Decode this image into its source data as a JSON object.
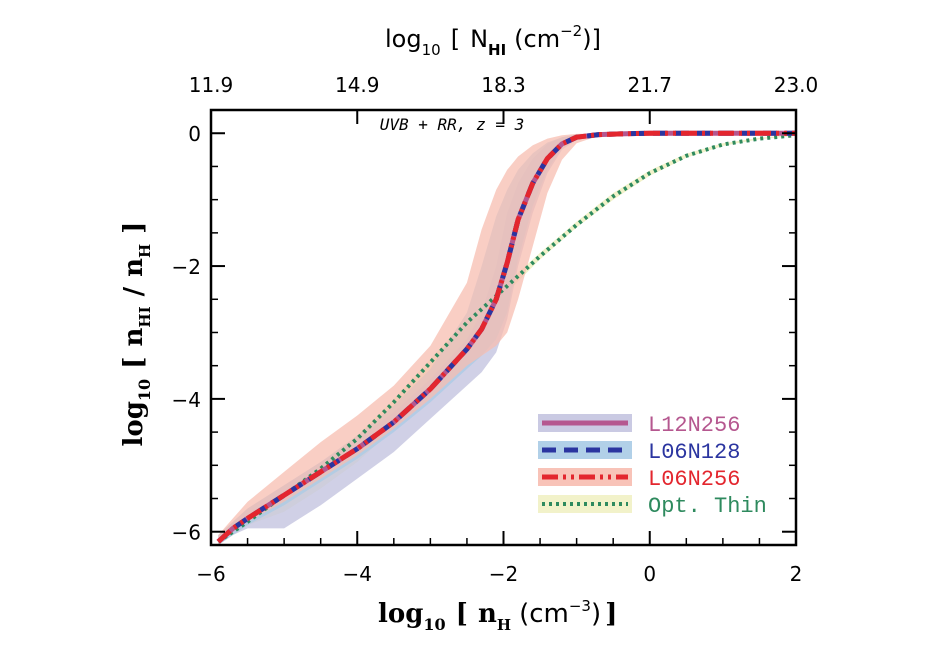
{
  "chart_data": {
    "type": "line",
    "title": "",
    "annotation": "UVB + RR, z = 3",
    "xlabel": {
      "prefix": "log",
      "sub": "10",
      "bracket_open": "[",
      "var": "n",
      "var_sub": "H",
      "unit": "(cm",
      "unit_sup": "−3",
      "unit_close": ")",
      "bracket_close": "]"
    },
    "ylabel": {
      "prefix": "log",
      "sub": "10",
      "bracket_open": "[",
      "num": "n",
      "num_sub": "HI",
      "slash": "/",
      "den": "n",
      "den_sub": "H",
      "bracket_close": "]"
    },
    "top_label": {
      "prefix": "log",
      "sub": "10",
      "bracket_open": "[",
      "var": "N",
      "var_sub": "HI",
      "unit": "(cm",
      "unit_sup": "−2",
      "unit_close": ")",
      "bracket_close": "]"
    },
    "xlim": [
      -6,
      2
    ],
    "ylim": [
      -6.2,
      0.35
    ],
    "x_ticks": [
      -6,
      -4,
      -2,
      0,
      2
    ],
    "x_tick_labels": [
      "−6",
      "−4",
      "−2",
      "0",
      "2"
    ],
    "y_ticks": [
      -6,
      -4,
      -2,
      0
    ],
    "y_tick_labels": [
      "−6",
      "−4",
      "−2",
      "0"
    ],
    "top_ticks": [
      -6,
      -4,
      -2,
      0,
      2
    ],
    "top_tick_labels": [
      "11.9",
      "14.9",
      "18.3",
      "21.7",
      "23.0"
    ],
    "legend": [
      {
        "name": "L12N256",
        "color": "#b5578f",
        "band_color": "#c4c4e0",
        "style": "solid"
      },
      {
        "name": "L06N128",
        "color": "#2b35a0",
        "band_color": "#a9cbe6",
        "style": "dashed"
      },
      {
        "name": "L06N256",
        "color": "#e3262e",
        "band_color": "#f7bdb0",
        "style": "dashdotdot"
      },
      {
        "name": "Opt. Thin",
        "color": "#2e8a5e",
        "band_color": "#f1f1c4",
        "style": "dotted"
      }
    ],
    "series": [
      {
        "name": "L12N256",
        "x": [
          -5.9,
          -5.7,
          -5.5,
          -5.0,
          -4.5,
          -4.0,
          -3.5,
          -3.0,
          -2.5,
          -2.3,
          -2.1,
          -1.95,
          -1.8,
          -1.6,
          -1.4,
          -1.2,
          -1.0,
          -0.7,
          -0.4,
          0.0,
          0.5,
          1.0,
          1.5,
          2.0
        ],
        "y": [
          -6.15,
          -5.95,
          -5.8,
          -5.45,
          -5.1,
          -4.75,
          -4.35,
          -3.85,
          -3.25,
          -2.95,
          -2.5,
          -1.95,
          -1.3,
          -0.75,
          -0.38,
          -0.16,
          -0.06,
          -0.02,
          -0.01,
          0.0,
          0.0,
          0.0,
          0.0,
          0.0
        ],
        "band_upper": [
          -6.05,
          -5.85,
          -5.65,
          -5.3,
          -4.95,
          -4.6,
          -4.2,
          -3.7,
          -3.1,
          -2.7,
          -2.0,
          -1.2,
          -0.75,
          -0.38,
          -0.16,
          -0.06,
          -0.02,
          -0.01,
          0.0,
          0.0,
          0.0,
          0.0,
          0.0,
          0.0
        ],
        "band_lower": [
          -6.2,
          -6.05,
          -5.95,
          -5.95,
          -5.6,
          -5.2,
          -4.8,
          -4.3,
          -3.8,
          -3.6,
          -3.3,
          -2.8,
          -2.0,
          -1.2,
          -0.6,
          -0.25,
          -0.1,
          -0.03,
          -0.01,
          0.0,
          0.0,
          0.0,
          0.0,
          0.0
        ]
      },
      {
        "name": "L06N128",
        "x": [
          -5.9,
          -5.7,
          -5.5,
          -5.0,
          -4.5,
          -4.0,
          -3.5,
          -3.0,
          -2.5,
          -2.3,
          -2.1,
          -1.95,
          -1.8,
          -1.6,
          -1.4,
          -1.2,
          -1.0,
          -0.7,
          -0.4,
          0.0,
          0.5,
          1.0,
          1.5,
          2.0
        ],
        "y": [
          -6.15,
          -5.95,
          -5.8,
          -5.45,
          -5.1,
          -4.75,
          -4.35,
          -3.85,
          -3.25,
          -2.95,
          -2.5,
          -1.95,
          -1.3,
          -0.75,
          -0.38,
          -0.16,
          -0.06,
          -0.02,
          -0.01,
          0.0,
          0.0,
          0.0,
          0.0,
          0.0
        ],
        "band_upper": [
          -6.05,
          -5.85,
          -5.65,
          -5.3,
          -4.95,
          -4.55,
          -4.1,
          -3.55,
          -2.7,
          -2.0,
          -1.25,
          -0.85,
          -0.55,
          -0.3,
          -0.14,
          -0.06,
          -0.02,
          -0.01,
          0.0,
          0.0,
          0.0,
          0.0,
          0.0,
          0.0
        ],
        "band_lower": [
          -6.2,
          -6.05,
          -5.9,
          -5.6,
          -5.25,
          -4.9,
          -4.5,
          -4.05,
          -3.55,
          -3.35,
          -3.1,
          -2.7,
          -1.9,
          -1.1,
          -0.55,
          -0.22,
          -0.08,
          -0.03,
          -0.01,
          0.0,
          0.0,
          0.0,
          0.0,
          0.0
        ]
      },
      {
        "name": "L06N256",
        "x": [
          -5.9,
          -5.7,
          -5.5,
          -5.0,
          -4.5,
          -4.0,
          -3.5,
          -3.0,
          -2.5,
          -2.3,
          -2.1,
          -1.95,
          -1.8,
          -1.6,
          -1.4,
          -1.2,
          -1.0,
          -0.7,
          -0.4,
          0.0,
          0.5,
          1.0,
          1.5,
          2.0
        ],
        "y": [
          -6.15,
          -5.95,
          -5.8,
          -5.45,
          -5.1,
          -4.75,
          -4.35,
          -3.85,
          -3.25,
          -2.95,
          -2.5,
          -1.95,
          -1.3,
          -0.75,
          -0.38,
          -0.16,
          -0.06,
          -0.02,
          -0.01,
          0.0,
          0.0,
          0.0,
          0.0,
          0.0
        ],
        "band_upper": [
          -6.05,
          -5.8,
          -5.55,
          -5.1,
          -4.65,
          -4.25,
          -3.8,
          -3.2,
          -2.25,
          -1.45,
          -0.85,
          -0.55,
          -0.35,
          -0.18,
          -0.08,
          -0.03,
          -0.01,
          0.0,
          0.0,
          0.0,
          0.0,
          0.0,
          0.0,
          0.0
        ],
        "band_lower": [
          -6.2,
          -6.0,
          -5.85,
          -5.55,
          -5.2,
          -4.85,
          -4.45,
          -4.0,
          -3.5,
          -3.35,
          -3.2,
          -3.0,
          -2.5,
          -1.7,
          -0.9,
          -0.4,
          -0.15,
          -0.04,
          -0.01,
          0.0,
          0.0,
          0.0,
          0.0,
          0.0
        ]
      },
      {
        "name": "Opt. Thin",
        "x": [
          -5.9,
          -5.5,
          -5.0,
          -4.5,
          -4.0,
          -3.5,
          -3.0,
          -2.5,
          -2.0,
          -1.5,
          -1.0,
          -0.5,
          0.0,
          0.5,
          1.0,
          1.5,
          2.0
        ],
        "y": [
          -6.15,
          -5.85,
          -5.45,
          -5.05,
          -4.6,
          -4.05,
          -3.45,
          -2.85,
          -2.35,
          -1.85,
          -1.38,
          -0.95,
          -0.6,
          -0.34,
          -0.17,
          -0.08,
          -0.03
        ],
        "band_upper": [
          -6.1,
          -5.8,
          -5.4,
          -5.0,
          -4.55,
          -4.0,
          -3.4,
          -2.8,
          -2.3,
          -1.8,
          -1.33,
          -0.9,
          -0.56,
          -0.31,
          -0.15,
          -0.07,
          -0.02
        ],
        "band_lower": [
          -6.2,
          -5.9,
          -5.7,
          -5.35,
          -4.95,
          -4.45,
          -3.8,
          -3.2,
          -2.45,
          -1.9,
          -1.42,
          -1.0,
          -0.64,
          -0.37,
          -0.19,
          -0.09,
          -0.04
        ]
      }
    ]
  }
}
